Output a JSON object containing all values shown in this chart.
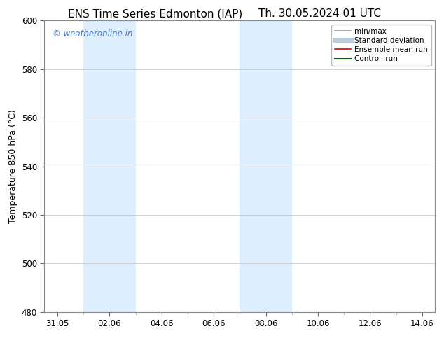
{
  "title_left": "ENS Time Series Edmonton (IAP)",
  "title_right": "Th. 30.05.2024 01 UTC",
  "ylabel": "Temperature 850 hPa (°C)",
  "ylim": [
    480,
    600
  ],
  "yticks": [
    480,
    500,
    520,
    540,
    560,
    580,
    600
  ],
  "xtick_labels": [
    "31.05",
    "02.06",
    "04.06",
    "06.06",
    "08.06",
    "10.06",
    "12.06",
    "14.06"
  ],
  "xtick_positions": [
    0,
    2,
    4,
    6,
    8,
    10,
    12,
    14
  ],
  "xlim": [
    -0.5,
    14.5
  ],
  "shaded_bands": [
    {
      "xstart": 1,
      "xend": 3,
      "color": "#ddeeff"
    },
    {
      "xstart": 7,
      "xend": 9,
      "color": "#ddeeff"
    }
  ],
  "watermark_text": "© weatheronline.in",
  "watermark_color": "#4477cc",
  "legend_entries": [
    {
      "label": "min/max",
      "color": "#999999",
      "lw": 1.2,
      "style": "solid"
    },
    {
      "label": "Standard deviation",
      "color": "#bbccdd",
      "lw": 5,
      "style": "solid"
    },
    {
      "label": "Ensemble mean run",
      "color": "#dd0000",
      "lw": 1.2,
      "style": "solid"
    },
    {
      "label": "Controll run",
      "color": "#006600",
      "lw": 1.5,
      "style": "solid"
    }
  ],
  "bg_color": "#ffffff",
  "plot_bg_color": "#ffffff",
  "grid_color": "#cccccc",
  "title_fontsize": 11,
  "axis_label_fontsize": 9,
  "tick_fontsize": 8.5,
  "watermark_fontsize": 8.5,
  "legend_fontsize": 7.5
}
